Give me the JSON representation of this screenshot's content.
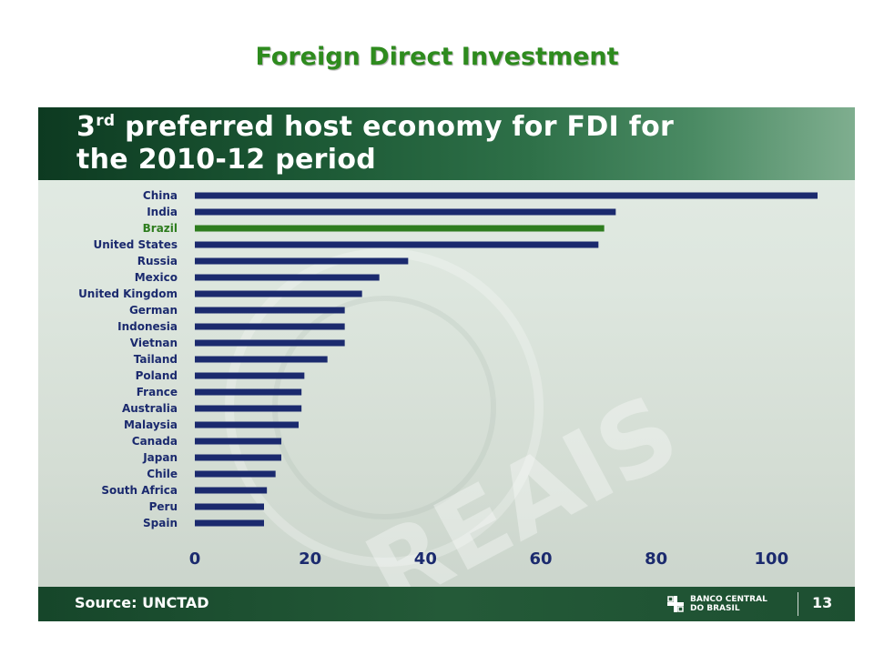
{
  "page_title": "Foreign Direct Investment",
  "slide": {
    "title_line1_pre": "3",
    "title_line1_sup": "rd",
    "title_line1_post": " preferred host economy for FDI for",
    "title_line2": "the 2010-12 period",
    "source": "Source: UNCTAD",
    "bank_name": "BANCO CENTRAL\nDO BRASIL",
    "page_number": "13",
    "watermark_text": "REAIS"
  },
  "colors": {
    "bar": "#1b2a6e",
    "highlight_bar": "#2e7d1e",
    "title_green": "#2e8b1e"
  },
  "chart_data": {
    "type": "bar",
    "orientation": "horizontal",
    "categories": [
      "China",
      "India",
      "Brazil",
      "United States",
      "Russia",
      "Mexico",
      "United Kingdom",
      "German",
      "Indonesia",
      "Vietnan",
      "Tailand",
      "Poland",
      "France",
      "Australia",
      "Malaysia",
      "Canada",
      "Japan",
      "Chile",
      "South Africa",
      "Peru",
      "Spain"
    ],
    "values": [
      108,
      73,
      71,
      70,
      37,
      32,
      29,
      26,
      26,
      26,
      23,
      19,
      18.5,
      18.5,
      18,
      15,
      15,
      14,
      12.5,
      12,
      12
    ],
    "highlight": "Brazil",
    "xlim": [
      0,
      108
    ],
    "xticks": [
      0,
      20,
      40,
      60,
      80,
      100
    ],
    "grid": false,
    "legend": "none"
  }
}
